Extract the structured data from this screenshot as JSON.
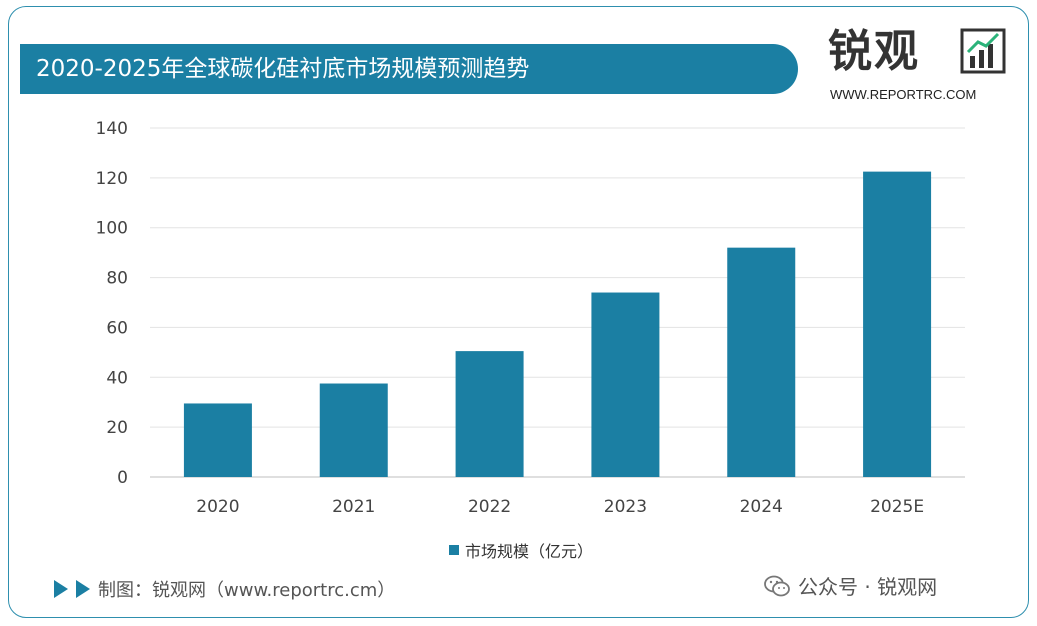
{
  "header": {
    "title": "2020-2025年全球碳化硅衬底市场规模预测趋势"
  },
  "logo": {
    "name": "锐观",
    "url": "WWW.REPORTRC.COM"
  },
  "footer": {
    "source": "制图：锐观网（www.reportrc.cm）",
    "wechat": "公众号 · 锐观网"
  },
  "colors": {
    "bar": "#1b7fa3",
    "accent": "#1b7fa3"
  },
  "chart_data": {
    "type": "bar",
    "categories": [
      "2020",
      "2021",
      "2022",
      "2023",
      "2024",
      "2025E"
    ],
    "series": [
      {
        "name": "市场规模（亿元）",
        "values": [
          29.5,
          37.5,
          50.5,
          74,
          92,
          122.5
        ]
      }
    ],
    "yticks": [
      0,
      20,
      40,
      60,
      80,
      100,
      120,
      140
    ],
    "ylim": [
      0,
      140
    ],
    "grid": true,
    "legend_position": "bottom"
  }
}
